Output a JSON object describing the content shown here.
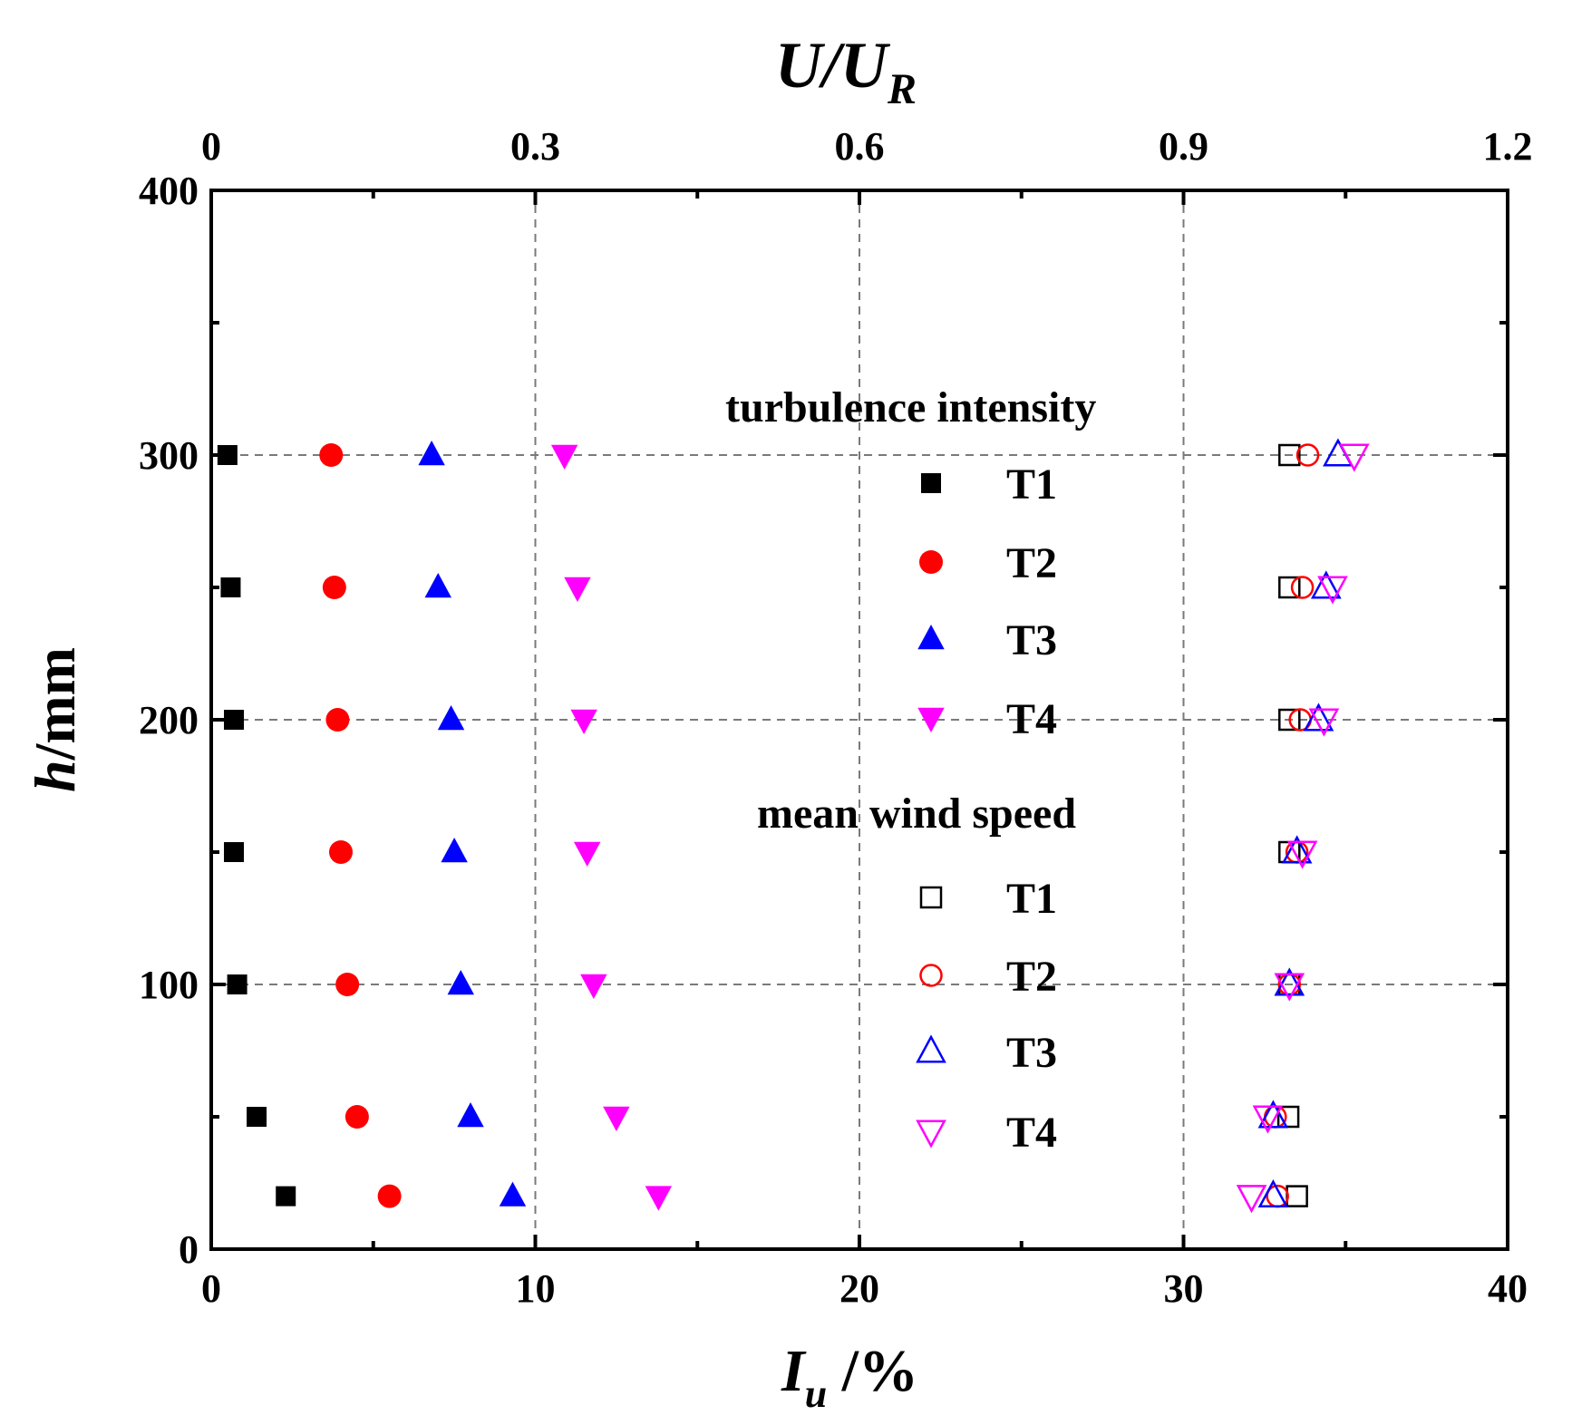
{
  "chart_data": {
    "type": "scatter",
    "bottom_axis": {
      "label_main": "I",
      "label_sub": "u",
      "label_suffix": " /%",
      "range": [
        0,
        40
      ],
      "ticks": [
        0,
        10,
        20,
        30,
        40
      ]
    },
    "top_axis": {
      "label_main": "U/U",
      "label_sub": "R",
      "range": [
        0,
        1.2
      ],
      "ticks": [
        0,
        0.3,
        0.6,
        0.9,
        1.2
      ],
      "tick_labels": [
        "0",
        "0.3",
        "0.6",
        "0.9",
        "1.2"
      ]
    },
    "left_axis": {
      "label_main": "h",
      "label_suffix": "/mm",
      "range": [
        0,
        400
      ],
      "ticks": [
        0,
        100,
        200,
        300,
        400
      ]
    },
    "grid": {
      "x": [
        10,
        20,
        30
      ],
      "y": [
        100,
        200,
        300
      ],
      "style": "dashed"
    },
    "legend": {
      "placement": "center-right",
      "turbulence_title": "turbulence intensity",
      "mean_title": "mean wind speed",
      "turbulence_entries": [
        "T1",
        "T2",
        "T3",
        "T4"
      ],
      "mean_entries": [
        "T1",
        "T2",
        "T3",
        "T4"
      ]
    },
    "heights": [
      20,
      50,
      100,
      150,
      200,
      250,
      300
    ],
    "turbulence_intensity": [
      {
        "name": "T1",
        "marker": "square-filled",
        "color": "#000000",
        "values": [
          2.3,
          1.4,
          0.8,
          0.7,
          0.7,
          0.6,
          0.5
        ]
      },
      {
        "name": "T2",
        "marker": "circle-filled",
        "color": "#ff0000",
        "values": [
          5.5,
          4.5,
          4.2,
          4.0,
          3.9,
          3.8,
          3.7
        ]
      },
      {
        "name": "T3",
        "marker": "triangle-up-filled",
        "color": "#0000ff",
        "values": [
          9.3,
          8.0,
          7.7,
          7.5,
          7.4,
          7.0,
          6.8
        ]
      },
      {
        "name": "T4",
        "marker": "triangle-down-filled",
        "color": "#ff00ff",
        "values": [
          13.8,
          12.5,
          11.8,
          11.6,
          11.5,
          11.3,
          10.9
        ]
      }
    ],
    "mean_wind_speed": [
      {
        "name": "T1",
        "marker": "square-open",
        "color": "#000000",
        "values": [
          1.005,
          0.997,
          0.998,
          0.998,
          0.998,
          0.998,
          0.998
        ]
      },
      {
        "name": "T2",
        "marker": "circle-open",
        "color": "#ff0000",
        "values": [
          0.987,
          0.985,
          0.998,
          1.005,
          1.008,
          1.01,
          1.015
        ]
      },
      {
        "name": "T3",
        "marker": "triangle-up-open",
        "color": "#0000ff",
        "values": [
          0.983,
          0.983,
          0.998,
          1.005,
          1.025,
          1.032,
          1.043
        ]
      },
      {
        "name": "T4",
        "marker": "triangle-down-open",
        "color": "#ff00ff",
        "values": [
          0.963,
          0.978,
          0.998,
          1.01,
          1.03,
          1.038,
          1.058
        ]
      }
    ]
  }
}
